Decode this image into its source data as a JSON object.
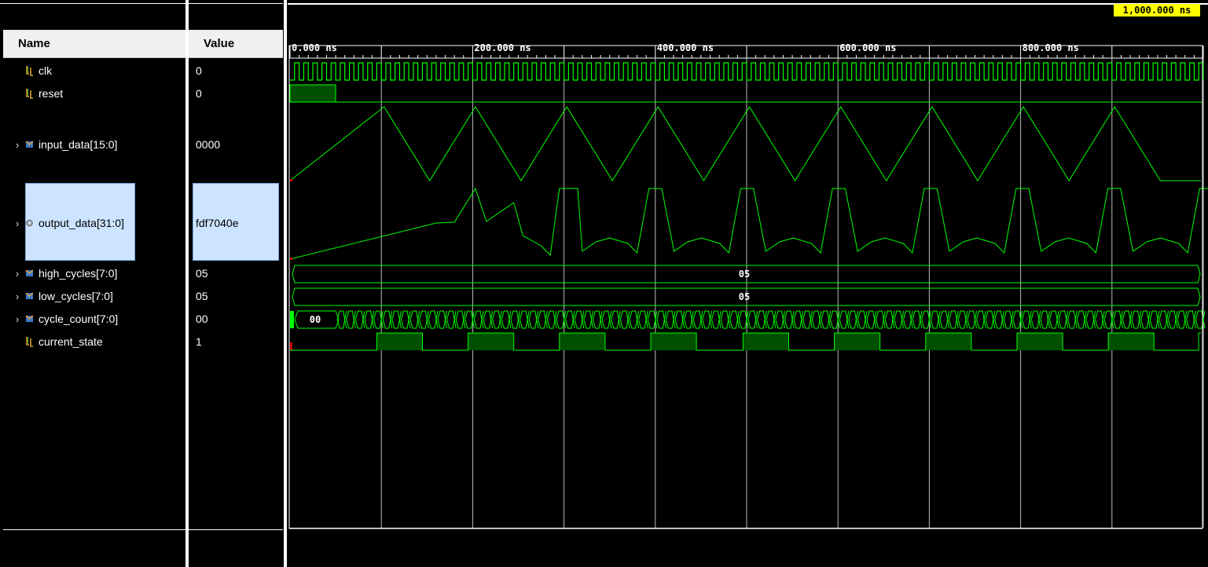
{
  "header": {
    "name": "Name",
    "value": "Value"
  },
  "signals": [
    {
      "name": "clk",
      "value": "0",
      "type": "bit"
    },
    {
      "name": "reset",
      "value": "0",
      "type": "bit"
    },
    {
      "name": "input_data[15:0]",
      "value": "0000",
      "type": "bus"
    },
    {
      "name": "output_data[31:0]",
      "value": "fdf7040e",
      "type": "bus",
      "selected": true
    },
    {
      "name": "high_cycles[7:0]",
      "value": "05",
      "type": "bus"
    },
    {
      "name": "low_cycles[7:0]",
      "value": "05",
      "type": "bus"
    },
    {
      "name": "cycle_count[7:0]",
      "value": "00",
      "type": "bus"
    },
    {
      "name": "current_state",
      "value": "1",
      "type": "bit"
    }
  ],
  "timeline": {
    "cursor_label": "1,000.000 ns",
    "ticks": [
      "0.000 ns",
      "200.000 ns",
      "400.000 ns",
      "600.000 ns",
      "800.000 ns"
    ]
  },
  "waveform_labels": {
    "high_cycles": "05",
    "low_cycles": "05",
    "cycle_count": "00"
  },
  "colors": {
    "wave": "#00ff00",
    "grid": "#ffffff",
    "selected": "#cce4ff",
    "cursor": "#ffff00"
  }
}
